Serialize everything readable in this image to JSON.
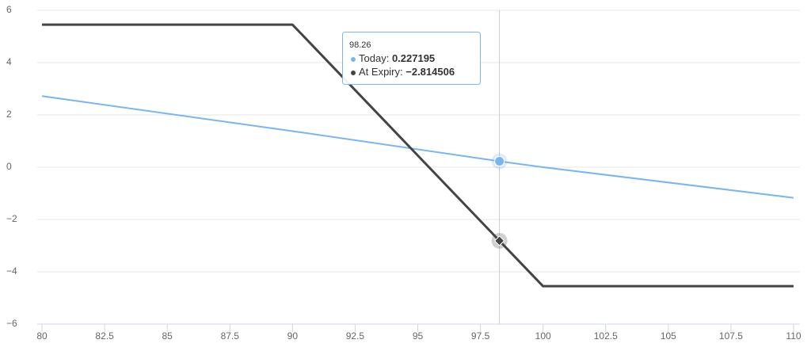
{
  "chart_data": {
    "type": "line",
    "x": [
      80,
      90,
      98.26,
      100,
      110
    ],
    "series": [
      {
        "name": "Today",
        "color": "#7cb5ec",
        "values": [
          2.72,
          1.38,
          0.227195,
          0,
          -1.17
        ]
      },
      {
        "name": "At Expiry",
        "color": "#434348",
        "values": [
          5.45,
          5.45,
          -2.814506,
          -4.55,
          -4.55
        ]
      }
    ],
    "xlim": [
      80,
      110
    ],
    "xticks": [
      80,
      82.5,
      85,
      87.5,
      90,
      92.5,
      95,
      97.5,
      100,
      102.5,
      105,
      107.5,
      110
    ],
    "ylim": [
      -6,
      6
    ],
    "yticks": [
      {
        "value": -6,
        "label": "−6"
      },
      {
        "value": -4,
        "label": "−4"
      },
      {
        "value": -2,
        "label": "−2"
      },
      0,
      2,
      4,
      6
    ],
    "grid": true,
    "tooltip": {
      "x": 98.26,
      "items": [
        {
          "label": "Today:",
          "value": 0.227195
        },
        {
          "label": "At Expiry:",
          "value": -2.814506,
          "value_label": "−2.814506"
        }
      ]
    }
  }
}
